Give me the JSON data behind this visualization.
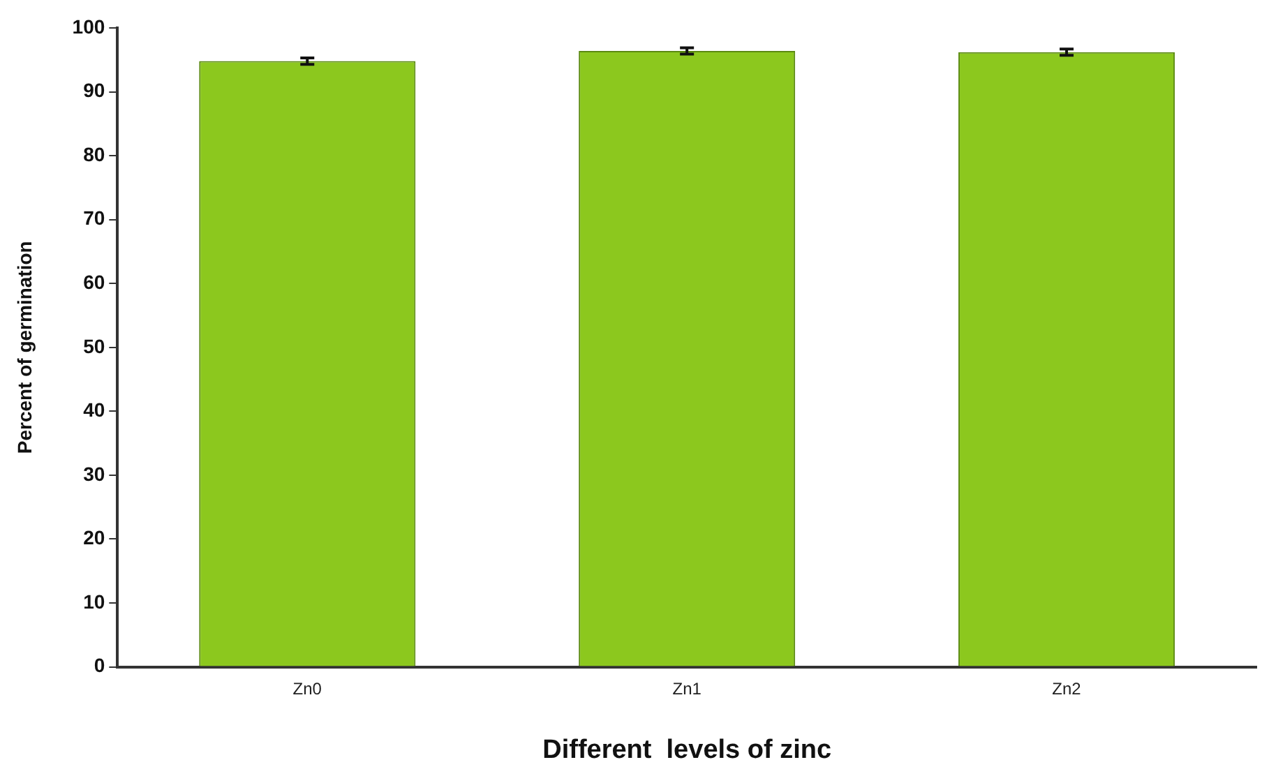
{
  "chart_data": {
    "type": "bar",
    "xlabel": "Different  levels of zinc",
    "ylabel": "Percent of germination",
    "categories": [
      "Zn0",
      "Zn1",
      "Zn2"
    ],
    "values": [
      94.8,
      96.4,
      96.2
    ],
    "errors": [
      0.5,
      0.5,
      0.5
    ],
    "color": "#8cc81e",
    "ylim": [
      0,
      100
    ],
    "yticks": [
      0,
      10,
      20,
      30,
      40,
      50,
      60,
      70,
      80,
      90,
      100
    ],
    "grid": false,
    "legend": false
  }
}
